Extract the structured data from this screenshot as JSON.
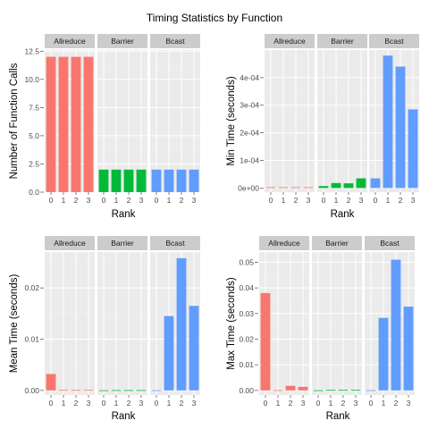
{
  "title": "Timing Statistics by Function",
  "colors": {
    "panel_bg": "#ebebeb",
    "grid_major": "#ffffff",
    "grid_minor": "#f2f2f2",
    "strip_bg": "#cccccc",
    "tick_text": "#4d4d4d",
    "Allreduce": "#f8766d",
    "Barrier": "#00ba38",
    "Bcast": "#619cff"
  },
  "chart_data": [
    {
      "type": "bar",
      "facets": [
        "Allreduce",
        "Barrier",
        "Bcast"
      ],
      "x": [
        0,
        1,
        2,
        3
      ],
      "xlabel": "Rank",
      "ylabel": "Number of Function Calls",
      "ylim": [
        0,
        12.6
      ],
      "yticks": [
        0,
        2.5,
        5,
        7.5,
        10,
        12.5
      ],
      "yticklabels": [
        "0.0",
        "2.5",
        "5.0",
        "7.5",
        "10.0",
        "12.5"
      ],
      "series": [
        {
          "name": "Allreduce",
          "values": [
            12,
            12,
            12,
            12
          ]
        },
        {
          "name": "Barrier",
          "values": [
            2,
            2,
            2,
            2
          ]
        },
        {
          "name": "Bcast",
          "values": [
            2,
            2,
            2,
            2
          ]
        }
      ]
    },
    {
      "type": "bar",
      "facets": [
        "Allreduce",
        "Barrier",
        "Bcast"
      ],
      "x": [
        0,
        1,
        2,
        3
      ],
      "xlabel": "Rank",
      "ylabel": "Min Time (seconds)",
      "ylim": [
        -1.5e-05,
        0.0005
      ],
      "yticks": [
        0,
        0.0001,
        0.0002,
        0.0003,
        0.0004
      ],
      "yticklabels": [
        "0e+00",
        "1e-04",
        "2e-04",
        "3e-04",
        "4e-04"
      ],
      "series": [
        {
          "name": "Allreduce",
          "values": [
            3e-06,
            3e-06,
            3e-06,
            3e-06
          ]
        },
        {
          "name": "Barrier",
          "values": [
            7e-06,
            1.8e-05,
            1.7e-05,
            3.5e-05
          ]
        },
        {
          "name": "Bcast",
          "values": [
            3.5e-05,
            0.00048,
            0.00044,
            0.000285
          ]
        }
      ]
    },
    {
      "type": "bar",
      "facets": [
        "Allreduce",
        "Barrier",
        "Bcast"
      ],
      "x": [
        0,
        1,
        2,
        3
      ],
      "xlabel": "Rank",
      "ylabel": "Mean Time (seconds)",
      "ylim": [
        -0.0009,
        0.027
      ],
      "yticks": [
        0,
        0.01,
        0.02
      ],
      "yticklabels": [
        "0.00",
        "0.01",
        "0.02"
      ],
      "series": [
        {
          "name": "Allreduce",
          "values": [
            0.0032,
            0.0001,
            0.0001,
            0.0001
          ]
        },
        {
          "name": "Barrier",
          "values": [
            3e-05,
            6e-05,
            6e-05,
            6e-05
          ]
        },
        {
          "name": "Bcast",
          "values": [
            4e-05,
            0.0145,
            0.0258,
            0.0165
          ]
        }
      ]
    },
    {
      "type": "bar",
      "facets": [
        "Allreduce",
        "Barrier",
        "Bcast"
      ],
      "x": [
        0,
        1,
        2,
        3
      ],
      "xlabel": "Rank",
      "ylabel": "Max Time (seconds)",
      "ylim": [
        -0.0018,
        0.054
      ],
      "yticks": [
        0,
        0.01,
        0.02,
        0.03,
        0.04,
        0.05
      ],
      "yticklabels": [
        "0.00",
        "0.01",
        "0.02",
        "0.03",
        "0.04",
        "0.05"
      ],
      "series": [
        {
          "name": "Allreduce",
          "values": [
            0.038,
            0.0001,
            0.0018,
            0.0014
          ]
        },
        {
          "name": "Barrier",
          "values": [
            8e-05,
            0.0002,
            0.0002,
            0.0002
          ]
        },
        {
          "name": "Bcast",
          "values": [
            0.0001,
            0.0283,
            0.051,
            0.0327
          ]
        }
      ]
    }
  ]
}
